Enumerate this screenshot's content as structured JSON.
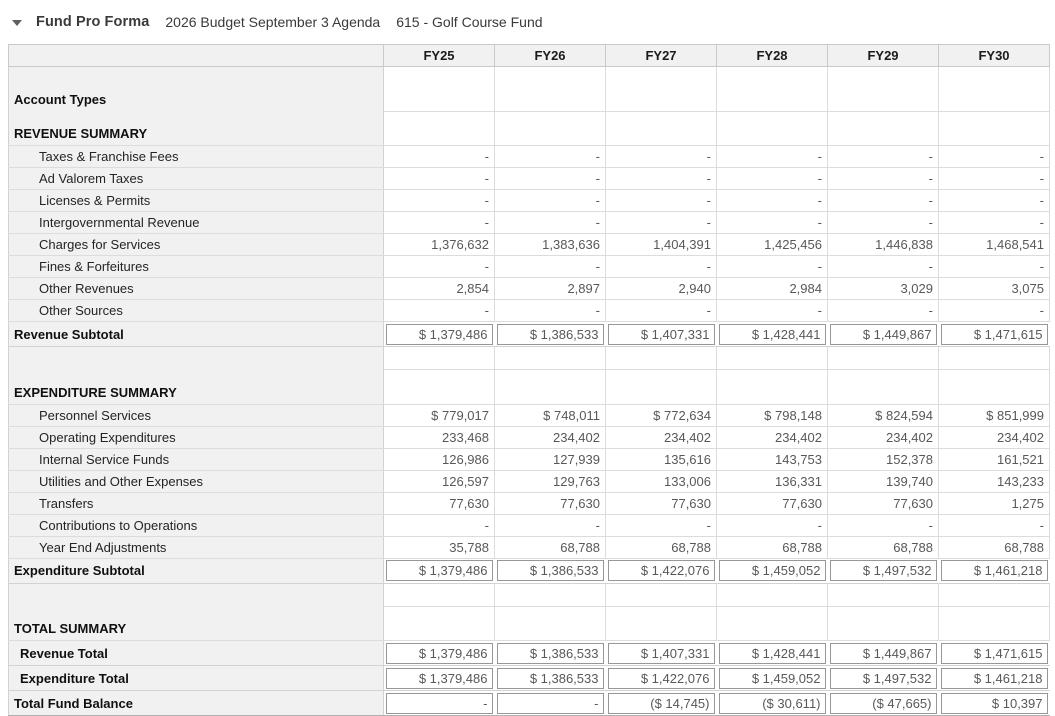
{
  "header": {
    "collapse_icon": "caret-down-icon",
    "title": "Fund Pro Forma",
    "subtitle_budget": "2026 Budget September 3 Agenda",
    "subtitle_fund": "615 - Golf Course Fund"
  },
  "colors": {
    "header_bg": "#f1f1f1",
    "label_col_bg": "#f1f1f1",
    "grid_line": "#dcdcdc",
    "box_border": "#979797",
    "number_text": "#58585a",
    "label_text": "#242424"
  },
  "table": {
    "columns": [
      "FY25",
      "FY26",
      "FY27",
      "FY28",
      "FY29",
      "FY30"
    ],
    "rows": [
      {
        "type": "section-tall",
        "label": "Account Types",
        "values": null
      },
      {
        "type": "section",
        "label": "REVENUE SUMMARY",
        "values": null
      },
      {
        "type": "detail",
        "label": "Taxes & Franchise Fees",
        "values": [
          "-",
          "-",
          "-",
          "-",
          "-",
          "-"
        ]
      },
      {
        "type": "detail",
        "label": "Ad Valorem Taxes",
        "values": [
          "-",
          "-",
          "-",
          "-",
          "-",
          "-"
        ]
      },
      {
        "type": "detail",
        "label": "Licenses & Permits",
        "values": [
          "-",
          "-",
          "-",
          "-",
          "-",
          "-"
        ]
      },
      {
        "type": "detail",
        "label": "Intergovernmental Revenue",
        "values": [
          "-",
          "-",
          "-",
          "-",
          "-",
          "-"
        ]
      },
      {
        "type": "detail",
        "label": "Charges for Services",
        "values": [
          "1,376,632",
          "1,383,636",
          "1,404,391",
          "1,425,456",
          "1,446,838",
          "1,468,541"
        ]
      },
      {
        "type": "detail",
        "label": "Fines & Forfeitures",
        "values": [
          "-",
          "-",
          "-",
          "-",
          "-",
          "-"
        ]
      },
      {
        "type": "detail",
        "label": "Other Revenues",
        "values": [
          "2,854",
          "2,897",
          "2,940",
          "2,984",
          "3,029",
          "3,075"
        ]
      },
      {
        "type": "detail",
        "label": "Other Sources",
        "values": [
          "-",
          "-",
          "-",
          "-",
          "-",
          "-"
        ]
      },
      {
        "type": "boxed",
        "label": "Revenue Subtotal",
        "indent": 0,
        "values": [
          "$ 1,379,486",
          "$ 1,386,533",
          "$ 1,407,331",
          "$ 1,428,441",
          "$ 1,449,867",
          "$ 1,471,615"
        ]
      },
      {
        "type": "spacer",
        "label": "",
        "values": null
      },
      {
        "type": "section",
        "label": "EXPENDITURE SUMMARY",
        "values": null
      },
      {
        "type": "detail",
        "label": "Personnel Services",
        "values": [
          "$ 779,017",
          "$ 748,011",
          "$ 772,634",
          "$ 798,148",
          "$ 824,594",
          "$ 851,999"
        ]
      },
      {
        "type": "detail",
        "label": "Operating Expenditures",
        "values": [
          "233,468",
          "234,402",
          "234,402",
          "234,402",
          "234,402",
          "234,402"
        ]
      },
      {
        "type": "detail",
        "label": "Internal Service Funds",
        "values": [
          "126,986",
          "127,939",
          "135,616",
          "143,753",
          "152,378",
          "161,521"
        ]
      },
      {
        "type": "detail",
        "label": "Utilities and Other Expenses",
        "values": [
          "126,597",
          "129,763",
          "133,006",
          "136,331",
          "139,740",
          "143,233"
        ]
      },
      {
        "type": "detail",
        "label": "Transfers",
        "values": [
          "77,630",
          "77,630",
          "77,630",
          "77,630",
          "77,630",
          "1,275"
        ]
      },
      {
        "type": "detail",
        "label": "Contributions to Operations",
        "values": [
          "-",
          "-",
          "-",
          "-",
          "-",
          "-"
        ]
      },
      {
        "type": "detail",
        "label": "Year End Adjustments",
        "values": [
          "35,788",
          "68,788",
          "68,788",
          "68,788",
          "68,788",
          "68,788"
        ]
      },
      {
        "type": "boxed",
        "label": "Expenditure Subtotal",
        "indent": 0,
        "values": [
          "$ 1,379,486",
          "$ 1,386,533",
          "$ 1,422,076",
          "$ 1,459,052",
          "$ 1,497,532",
          "$ 1,461,218"
        ]
      },
      {
        "type": "spacer",
        "label": "",
        "values": null
      },
      {
        "type": "section",
        "label": "TOTAL SUMMARY",
        "values": null
      },
      {
        "type": "boxed",
        "label": "Revenue Total",
        "indent": 1,
        "values": [
          "$ 1,379,486",
          "$ 1,386,533",
          "$ 1,407,331",
          "$ 1,428,441",
          "$ 1,449,867",
          "$ 1,471,615"
        ]
      },
      {
        "type": "boxed",
        "label": "Expenditure Total",
        "indent": 1,
        "values": [
          "$ 1,379,486",
          "$ 1,386,533",
          "$ 1,422,076",
          "$ 1,459,052",
          "$ 1,497,532",
          "$ 1,461,218"
        ]
      },
      {
        "type": "boxed",
        "label": "Total Fund Balance",
        "indent": 0,
        "last": true,
        "values": [
          "-",
          "-",
          "($ 14,745)",
          "($ 30,611)",
          "($ 47,665)",
          "$ 10,397"
        ]
      }
    ]
  }
}
